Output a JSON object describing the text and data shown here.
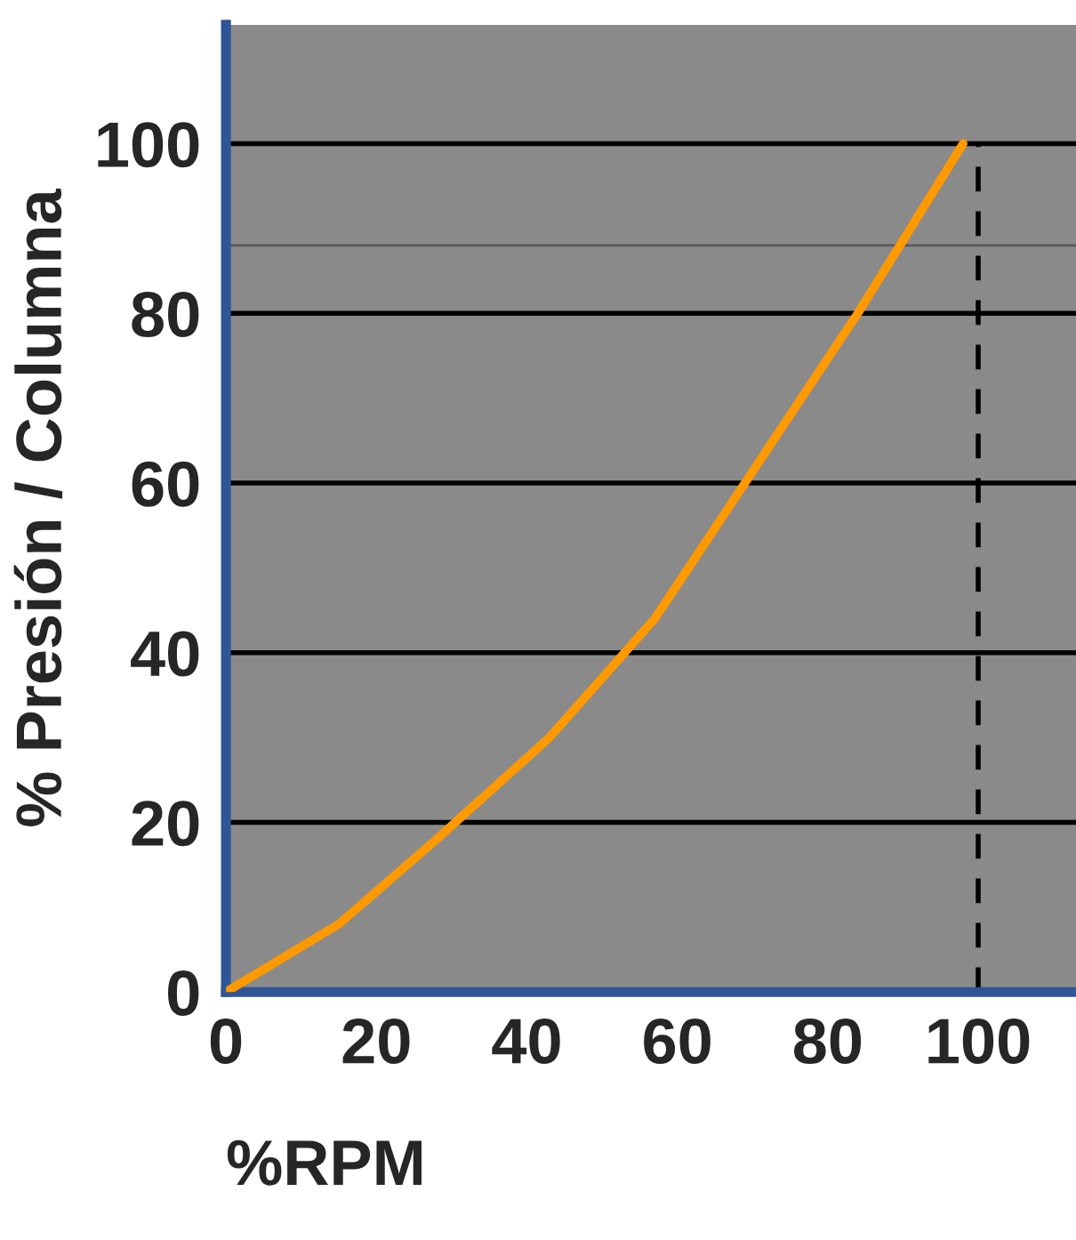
{
  "chart_data": {
    "type": "line",
    "xlabel": "%RPM",
    "ylabel": "% Presión / Columna",
    "x": [
      0,
      15,
      28,
      43,
      57,
      69,
      84,
      98
    ],
    "series": [
      {
        "color": "#ff9900",
        "values": [
          0,
          8,
          18,
          30,
          44,
          60,
          80,
          100
        ]
      }
    ],
    "xlim": [
      0,
      113
    ],
    "ylim": [
      0,
      114
    ],
    "xticks": [
      0,
      20,
      40,
      60,
      80,
      100
    ],
    "yticks": [
      0,
      20,
      40,
      60,
      80,
      100
    ],
    "grid": "y",
    "marker": "none",
    "line_style": "solid",
    "ref_lines": [
      {
        "axis": "x",
        "value": 100,
        "color": "#000000",
        "line_style": "dashed"
      },
      {
        "axis": "y",
        "value": 88,
        "color": "#5a5a5a",
        "line_style": "solid"
      }
    ]
  }
}
